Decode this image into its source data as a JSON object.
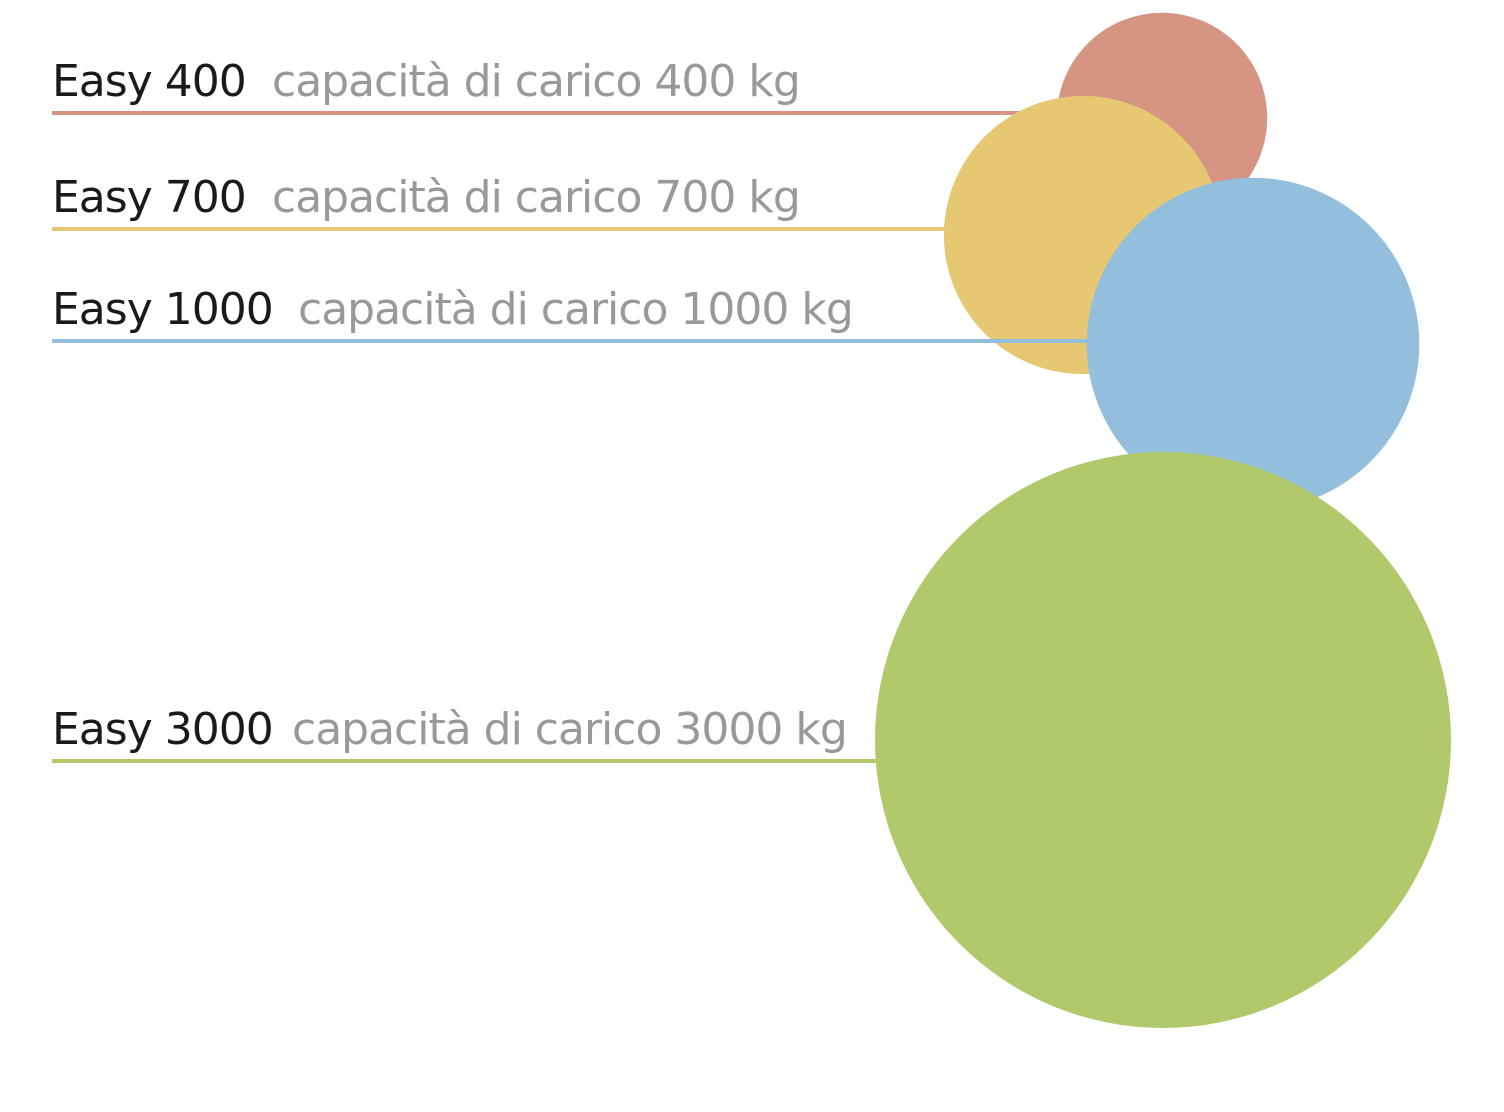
{
  "chart_data": {
    "type": "bubble",
    "unit": "kg",
    "items": [
      {
        "model": "Easy 400",
        "capacity_text": "capacità di carico 400 kg",
        "value": 400,
        "color": "#d69582"
      },
      {
        "model": "Easy 700",
        "capacity_text": "capacità di carico 700 kg",
        "value": 700,
        "color": "#e6c872"
      },
      {
        "model": "Easy 1000",
        "capacity_text": "capacità di carico 1000 kg",
        "value": 1000,
        "color": "#93bfdd"
      },
      {
        "model": "Easy 3000",
        "capacity_text": "capacità di carico 3000 kg",
        "value": 3000,
        "color": "#b1c96a"
      }
    ]
  }
}
